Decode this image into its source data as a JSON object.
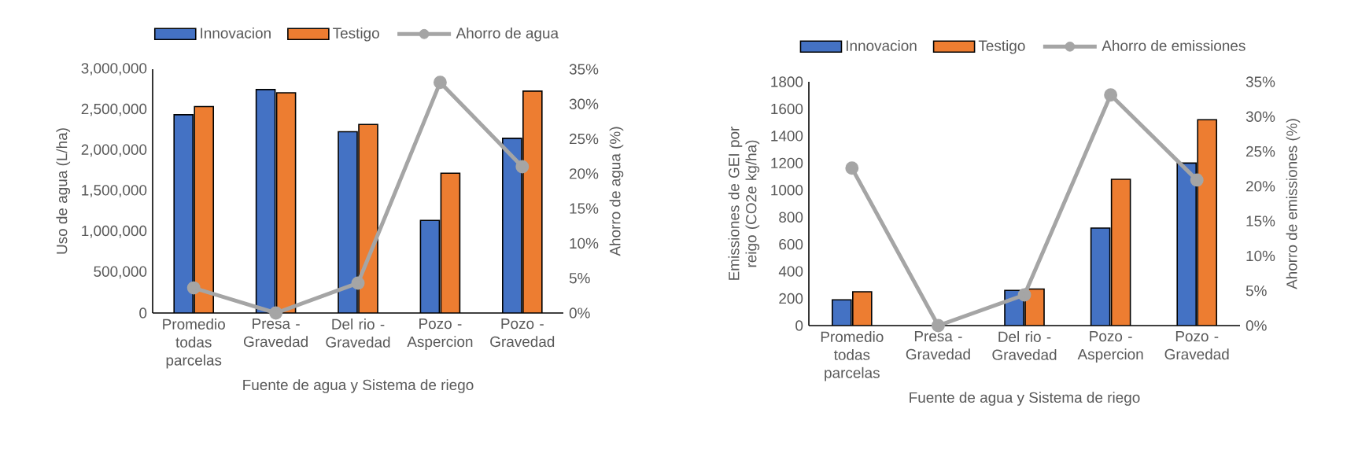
{
  "chart_data": [
    {
      "type": "bar",
      "categories": [
        "Promedio todas parcelas",
        "Presa - Gravedad",
        "Del rio - Gravedad",
        "Pozo - Aspercion",
        "Pozo - Gravedad"
      ],
      "series": [
        {
          "name": "Innovacion",
          "color": "#4472c4",
          "values": [
            2440000,
            2750000,
            2230000,
            1140000,
            2150000
          ]
        },
        {
          "name": "Testigo",
          "color": "#ed7d31",
          "values": [
            2540000,
            2710000,
            2320000,
            1720000,
            2730000
          ]
        },
        {
          "name": "Ahorro de agua",
          "type": "line",
          "axis": "y2",
          "marker": "circle",
          "color": "#a5a5a5",
          "values": [
            3.6,
            0,
            4.3,
            33.1,
            21.0
          ]
        }
      ],
      "xlabel": "Fuente de agua y Sistema de riego",
      "ylabel": "Uso de agua (L/ha)",
      "y2label": "Ahorro de agua (%)",
      "ylim": [
        0,
        3000000
      ],
      "yticks": [
        0,
        {
          "value": 500000,
          "label": "500,000"
        },
        {
          "value": 1000000,
          "label": "1,000,000"
        },
        {
          "value": 1500000,
          "label": "1,500,000"
        },
        {
          "value": 2000000,
          "label": "2,000,000"
        },
        {
          "value": 2500000,
          "label": "2,500,000"
        },
        {
          "value": 3000000,
          "label": "3,000,000"
        }
      ],
      "y2lim": [
        0,
        35
      ],
      "y2ticks": [
        {
          "value": 0,
          "label": "0%"
        },
        {
          "value": 5,
          "label": "5%"
        },
        {
          "value": 10,
          "label": "10%"
        },
        {
          "value": 15,
          "label": "15%"
        },
        {
          "value": 20,
          "label": "20%"
        },
        {
          "value": 25,
          "label": "25%"
        },
        {
          "value": 30,
          "label": "30%"
        },
        {
          "value": 35,
          "label": "35%"
        }
      ],
      "legend": "top"
    },
    {
      "type": "bar",
      "categories": [
        "Promedio todas parcelas",
        "Presa - Gravedad",
        "Del rio - Gravedad",
        "Pozo - Aspercion",
        "Pozo - Gravedad"
      ],
      "series": [
        {
          "name": "Innovacion",
          "color": "#4472c4",
          "values": [
            190,
            null,
            260,
            720,
            1200
          ]
        },
        {
          "name": "Testigo",
          "color": "#ed7d31",
          "values": [
            250,
            null,
            270,
            1080,
            1520
          ]
        },
        {
          "name": "Ahorro de emissiones",
          "type": "line",
          "axis": "y2",
          "marker": "circle",
          "color": "#a5a5a5",
          "values": [
            22.6,
            0,
            4.4,
            33.1,
            20.9
          ]
        }
      ],
      "xlabel": "Fuente de agua y Sistema de riego",
      "ylabel": "Emissiones de GEI por reigo (CO2e kg/ha)",
      "y2label": "Ahorro de emissiones (%)",
      "ylim": [
        0,
        1800
      ],
      "yticks": [
        0,
        200,
        400,
        600,
        800,
        1000,
        1200,
        1400,
        1600,
        1800
      ],
      "y2lim": [
        0,
        35
      ],
      "y2ticks": [
        {
          "value": 0,
          "label": "0%"
        },
        {
          "value": 5,
          "label": "5%"
        },
        {
          "value": 10,
          "label": "10%"
        },
        {
          "value": 15,
          "label": "15%"
        },
        {
          "value": 20,
          "label": "20%"
        },
        {
          "value": 25,
          "label": "25%"
        },
        {
          "value": 30,
          "label": "30%"
        },
        {
          "value": 35,
          "label": "35%"
        }
      ],
      "legend": "top"
    }
  ]
}
